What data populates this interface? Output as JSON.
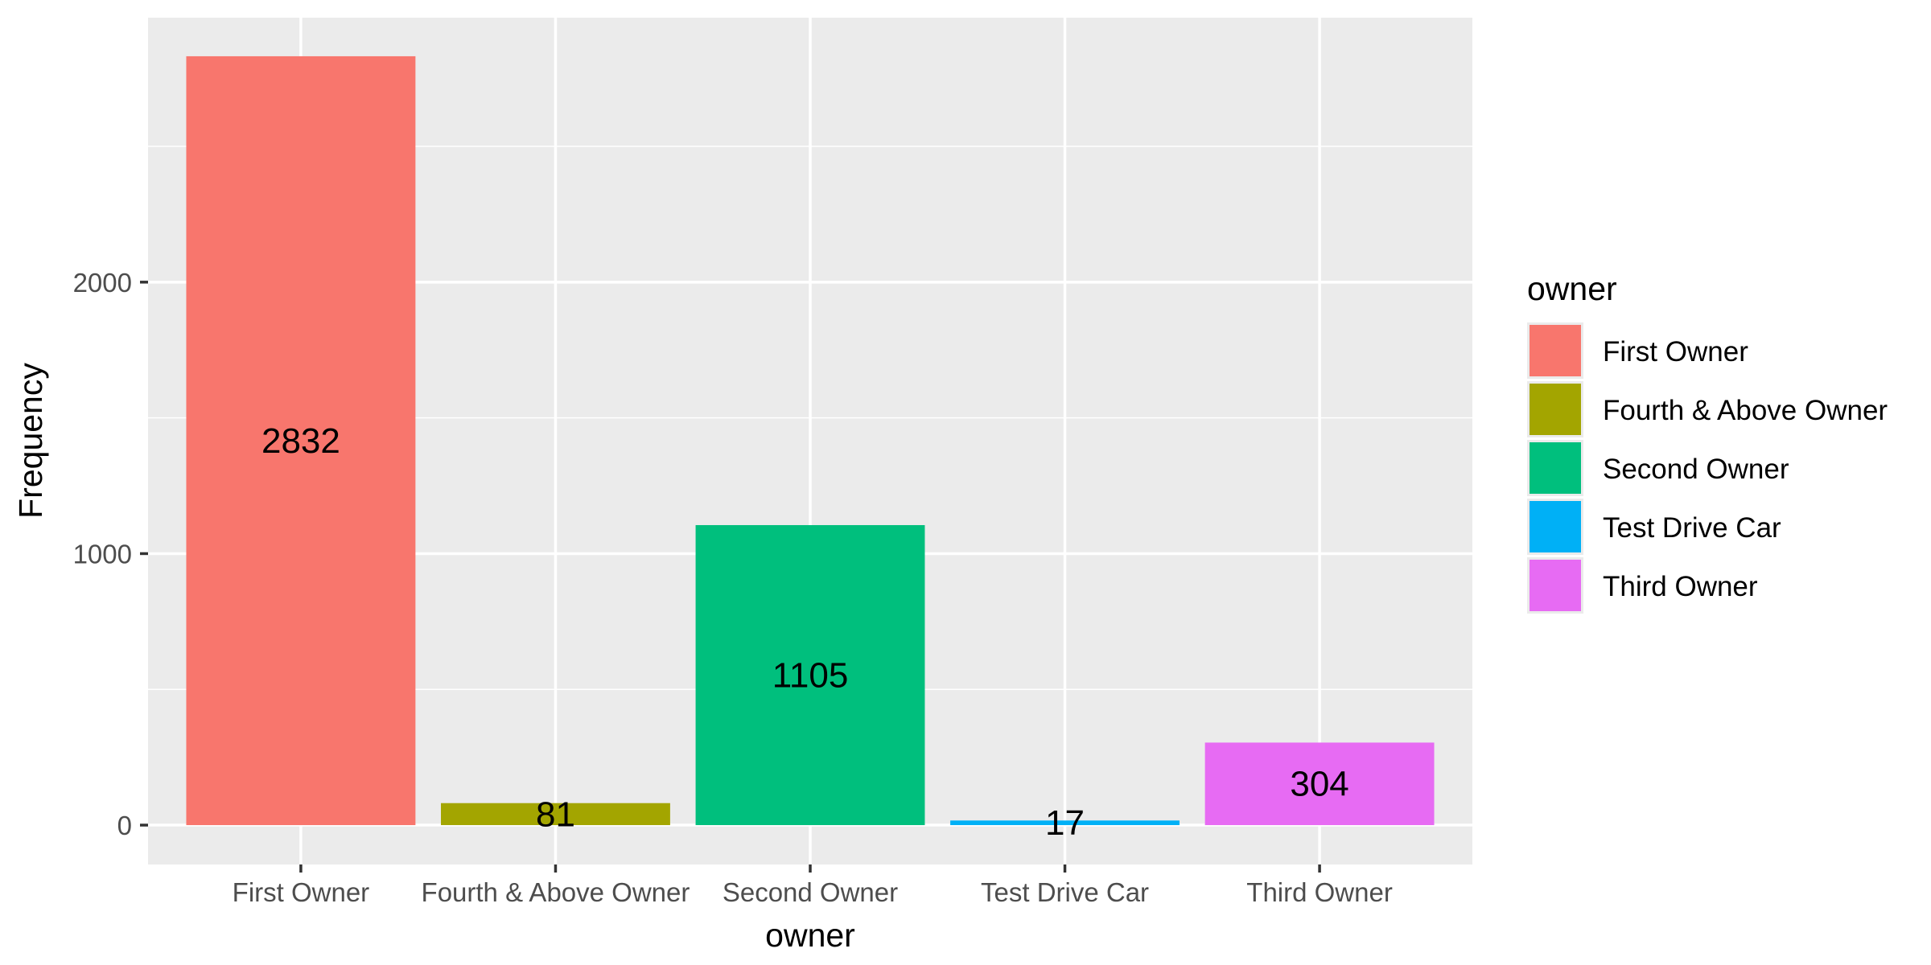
{
  "chart_data": {
    "type": "bar",
    "categories": [
      "First Owner",
      "Fourth & Above Owner",
      "Second Owner",
      "Test Drive Car",
      "Third Owner"
    ],
    "values": [
      2832,
      81,
      1105,
      17,
      304
    ],
    "colors": [
      "#F8766D",
      "#A3A500",
      "#00BF7D",
      "#00B0F6",
      "#E76BF3"
    ],
    "xlabel": "owner",
    "ylabel": "Frequency",
    "ylim": [
      -145,
      2974
    ],
    "yticks": [
      0,
      1000,
      2000
    ],
    "grid": true,
    "legend": {
      "title": "owner",
      "placement": "right",
      "entries": [
        "First Owner",
        "Fourth & Above Owner",
        "Second Owner",
        "Test Drive Car",
        "Third Owner"
      ]
    }
  }
}
